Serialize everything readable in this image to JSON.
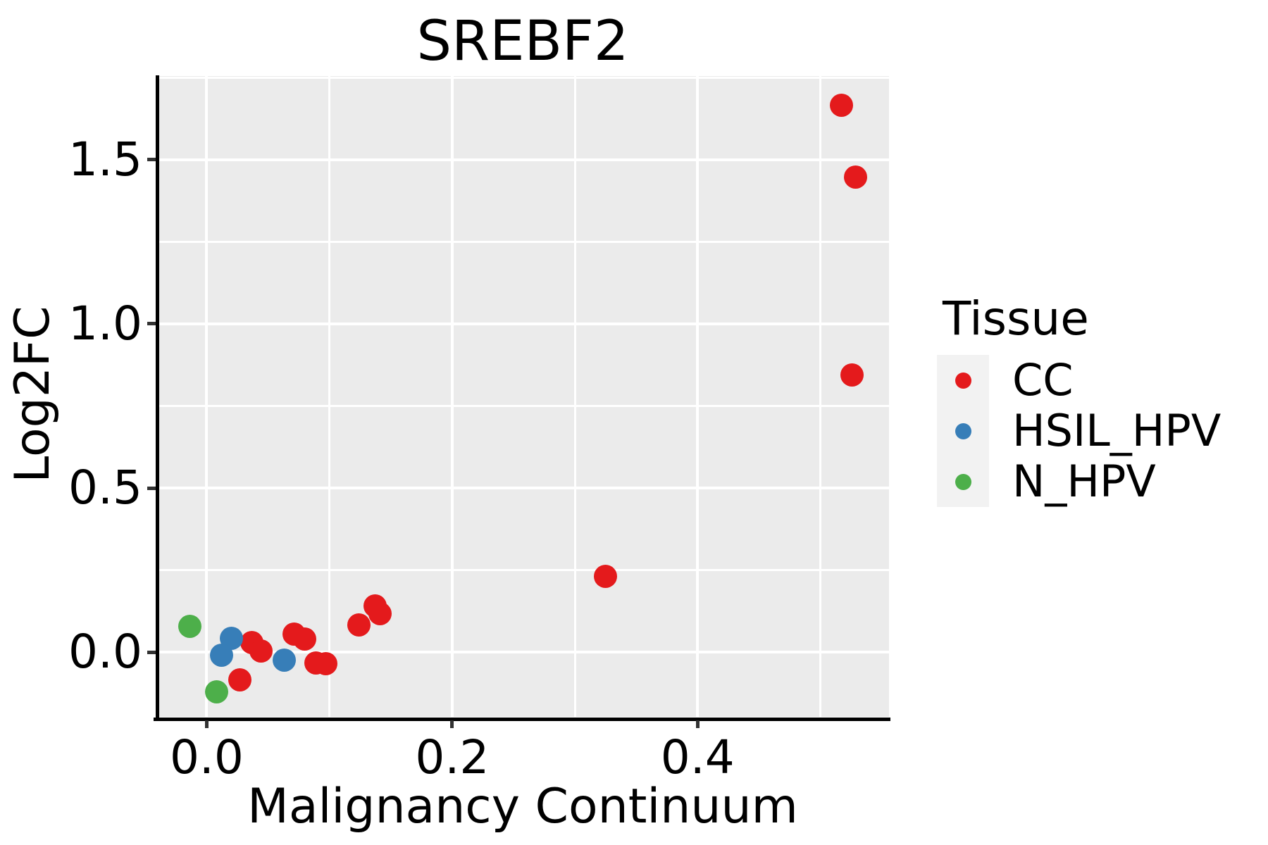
{
  "chart_data": {
    "type": "scatter",
    "title": "SREBF2",
    "xlabel": "Malignancy Continuum",
    "ylabel": "Log2FC",
    "xlim": [
      -0.041,
      0.556
    ],
    "ylim": [
      -0.197,
      1.755
    ],
    "x_ticks": {
      "values": [
        0.0,
        0.2,
        0.4
      ],
      "labels": [
        "0.0",
        "0.2",
        "0.4"
      ]
    },
    "y_ticks": {
      "values": [
        0.0,
        0.5,
        1.0,
        1.5
      ],
      "labels": [
        "0.0",
        "0.5",
        "1.0",
        "1.5"
      ]
    },
    "x_minor_gridlines": [
      0.1,
      0.3,
      0.5
    ],
    "y_minor_gridlines": [
      0.25,
      0.75,
      1.25,
      1.75
    ],
    "grid": "on",
    "panel_background": "#EBEBEB",
    "gridline_color": "#FFFFFF",
    "axis_line_color": "#000000",
    "legend_title": "Tissue",
    "legend_position": "right",
    "legend_key_background": "#F2F2F2",
    "series": [
      {
        "name": "CC",
        "color": "#E41A1C",
        "points": [
          [
            0.037,
            0.03
          ],
          [
            0.044,
            0.004
          ],
          [
            0.027,
            -0.084
          ],
          [
            0.071,
            0.056
          ],
          [
            0.08,
            0.041
          ],
          [
            0.089,
            -0.032
          ],
          [
            0.097,
            -0.036
          ],
          [
            0.124,
            0.084
          ],
          [
            0.137,
            0.14
          ],
          [
            0.141,
            0.118
          ],
          [
            0.325,
            0.232
          ],
          [
            0.517,
            1.665
          ],
          [
            0.529,
            1.448
          ],
          [
            0.526,
            0.845
          ]
        ]
      },
      {
        "name": "HSIL_HPV",
        "color": "#377EB8",
        "points": [
          [
            0.02,
            0.043
          ],
          [
            0.012,
            -0.009
          ],
          [
            0.063,
            -0.024
          ]
        ]
      },
      {
        "name": "N_HPV",
        "color": "#4DAF4A",
        "points": [
          [
            -0.014,
            0.079
          ],
          [
            0.008,
            -0.12
          ]
        ]
      }
    ]
  }
}
